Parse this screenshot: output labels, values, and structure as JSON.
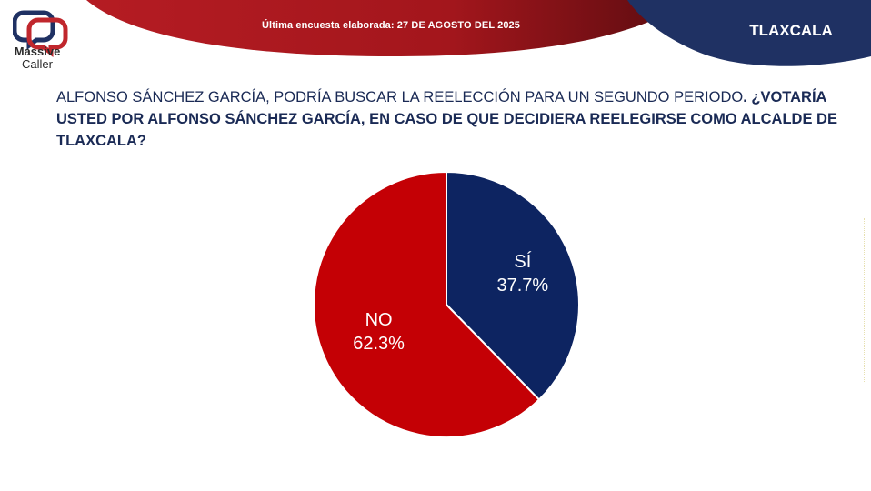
{
  "header": {
    "survey_date": "Última encuesta elaborada: 27 DE AGOSTO DEL 2025",
    "state": "TLAXCALA"
  },
  "logo": {
    "line1": "Massive",
    "line2": "Caller"
  },
  "question": {
    "part1": "ALFONSO SÁNCHEZ GARCÍA, PODRÍA BUSCAR LA REELECCIÓN PARA UN SEGUNDO PERIODO",
    "part2": ". ¿VOTARÍA USTED POR ALFONSO SÁNCHEZ GARCÍA, EN CASO DE QUE DECIDIERA REELEGIRSE COMO ALCALDE DE TLAXCALA?"
  },
  "colors": {
    "si": "#0d2461",
    "no": "#c40005",
    "banner_red": "#b31b22",
    "banner_navy": "#1f3163"
  },
  "chart_data": {
    "type": "pie",
    "title": "",
    "slices": [
      {
        "label": "SÍ",
        "value": 37.7,
        "display": "37.7%"
      },
      {
        "label": "NO",
        "value": 62.3,
        "display": "62.3%"
      }
    ]
  }
}
